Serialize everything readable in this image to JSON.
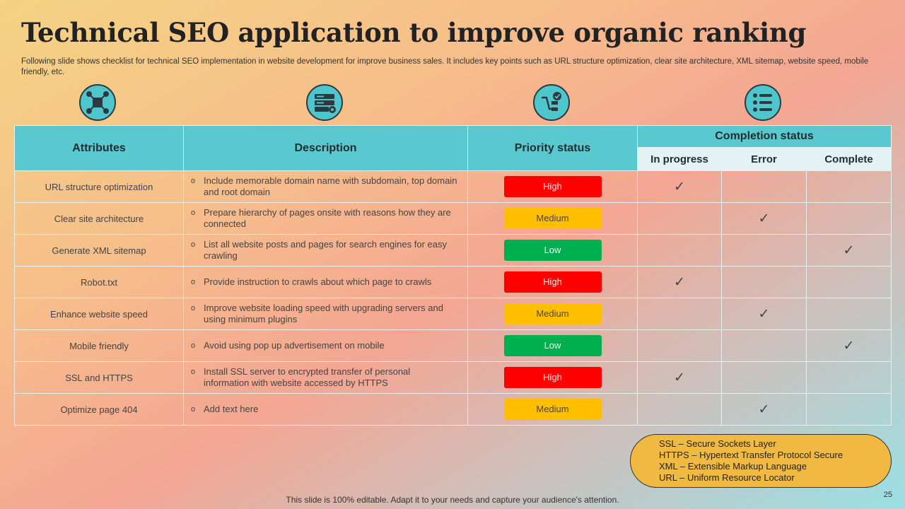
{
  "title": "Technical SEO application to improve organic ranking",
  "subtitle": "Following slide shows checklist for technical SEO implementation in website development for improve business sales. It includes key points such as URL structure optimization, clear site architecture, XML sitemap, website speed, mobile friendly, etc.",
  "icons": [
    "network-icon",
    "server-settings-icon",
    "sitemap-check-icon",
    "checklist-icon"
  ],
  "table": {
    "headers": {
      "attributes": "Attributes",
      "description": "Description",
      "priority": "Priority status",
      "completion": "Completion status",
      "in_progress": "In progress",
      "error": "Error",
      "complete": "Complete"
    },
    "check_mark": "✓",
    "rows": [
      {
        "attribute": "URL structure optimization",
        "description": "Include memorable domain name with subdomain, top domain and root domain",
        "priority": "High",
        "status": "in_progress"
      },
      {
        "attribute": "Clear site architecture",
        "description": "Prepare hierarchy of pages onsite with reasons how they are connected",
        "priority": "Medium",
        "status": "error"
      },
      {
        "attribute": "Generate XML sitemap",
        "description": "List all website posts and pages for search engines for easy crawling",
        "priority": "Low",
        "status": "complete"
      },
      {
        "attribute": "Robot.txt",
        "description": "Provide instruction to crawls about which page to crawls",
        "priority": "High",
        "status": "in_progress"
      },
      {
        "attribute": "Enhance website speed",
        "description": "Improve website loading speed with upgrading servers and using minimum plugins",
        "priority": "Medium",
        "status": "error"
      },
      {
        "attribute": "Mobile friendly",
        "description": "Avoid using pop up advertisement on mobile",
        "priority": "Low",
        "status": "complete"
      },
      {
        "attribute": "SSL and HTTPS",
        "description": "Install SSL server to encrypted transfer of personal information with website accessed by HTTPS",
        "priority": "High",
        "status": "in_progress"
      },
      {
        "attribute": "Optimize page 404",
        "description": "Add text here",
        "priority": "Medium",
        "status": "error"
      }
    ]
  },
  "colors": {
    "High": "#ff0000",
    "Medium": "#ffbf00",
    "Low": "#00b050",
    "header": "#5ac8cf",
    "legend": "#f0b942"
  },
  "legend": [
    "SSL – Secure Sockets Layer",
    "HTTPS – Hypertext Transfer Protocol Secure",
    "XML – Extensible Markup Language",
    "URL – Uniform Resource Locator"
  ],
  "footer": "This slide is 100% editable. Adapt it to your needs and capture your audience's attention.",
  "page_number": "25"
}
